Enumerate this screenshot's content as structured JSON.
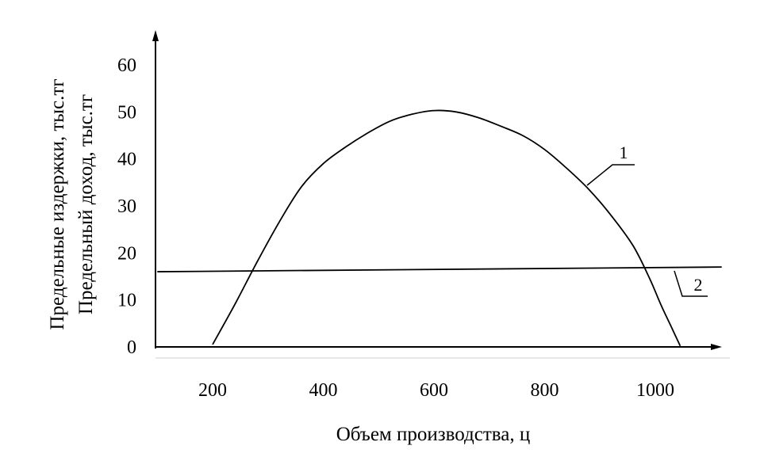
{
  "chart_data": {
    "type": "line",
    "title": "",
    "xlabel": "Объем производства, ц",
    "ylabels": [
      "Предельные издержки, тыс.тг",
      "Предельный доход, тыс.тг"
    ],
    "xlim": [
      100,
      1120
    ],
    "ylim": [
      0,
      66
    ],
    "x_ticks": [
      200,
      400,
      600,
      800,
      1000
    ],
    "y_ticks": [
      0,
      10,
      20,
      30,
      40,
      50,
      60
    ],
    "grid": false,
    "series": [
      {
        "name": "1",
        "x": [
          200,
          240,
          280,
          320,
          360,
          400,
          440,
          480,
          520,
          560,
          600,
          640,
          680,
          720,
          760,
          800,
          840,
          880,
          920,
          960,
          990,
          1010,
          1030,
          1045
        ],
        "values": [
          0.5,
          9,
          18,
          26.5,
          34,
          39,
          42.5,
          45.5,
          48,
          49.5,
          50.3,
          50,
          48.8,
          47,
          45,
          42,
          38,
          33.5,
          28,
          21.5,
          14.5,
          9,
          4,
          0.2
        ]
      },
      {
        "name": "2",
        "x": [
          100,
          1120
        ],
        "values": [
          16,
          17
        ]
      }
    ],
    "colors": {
      "line": "#000000",
      "background": "#ffffff"
    }
  }
}
